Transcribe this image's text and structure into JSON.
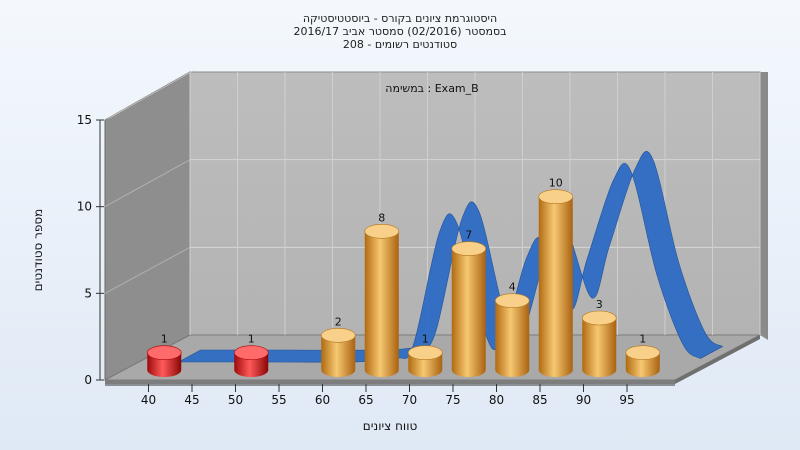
{
  "chart_data": {
    "type": "bar",
    "title_lines": [
      "היסטוגרמת ציונים בקורס - ביוסטטיסטיקה",
      "בסמסטר (02/2016) סמסטר אביב 2016/17",
      "סטודנטים רשומים - 208"
    ],
    "subtitle": "במשימה : Exam_B",
    "xlabel": "טווח ציונים",
    "ylabel": "מספר סטודנטים",
    "x_ticks": [
      "40",
      "45",
      "50",
      "55",
      "60",
      "65",
      "70",
      "75",
      "80",
      "85",
      "90",
      "95"
    ],
    "y_ticks": [
      "0",
      "5",
      "10",
      "15"
    ],
    "ylim": [
      0,
      15
    ],
    "grid": true,
    "bars": [
      {
        "x": 42.5,
        "value": 1,
        "label": "1",
        "color": "red"
      },
      {
        "x": 52.5,
        "value": 1,
        "label": "1",
        "color": "red"
      },
      {
        "x": 62.5,
        "value": 2,
        "label": "2",
        "color": "orange"
      },
      {
        "x": 67.5,
        "value": 8,
        "label": "8",
        "color": "orange"
      },
      {
        "x": 72.5,
        "value": 1,
        "label": "1",
        "color": "orange"
      },
      {
        "x": 77.5,
        "value": 7,
        "label": "7",
        "color": "orange"
      },
      {
        "x": 82.5,
        "value": 4,
        "label": "4",
        "color": "orange"
      },
      {
        "x": 87.5,
        "value": 10,
        "label": "10",
        "color": "orange"
      },
      {
        "x": 92.5,
        "value": 3,
        "label": "3",
        "color": "orange"
      },
      {
        "x": 97.5,
        "value": 1,
        "label": "1",
        "color": "orange"
      }
    ],
    "ribbon": {
      "x": [
        40,
        50,
        60,
        65,
        67,
        70,
        72,
        75,
        77,
        80,
        82,
        85,
        87,
        90,
        92,
        95,
        98,
        100
      ],
      "values": [
        0,
        0,
        0,
        0.2,
        1,
        7.5,
        8,
        2,
        1,
        6,
        7,
        3,
        6,
        10.5,
        11,
        5,
        1,
        0.2
      ]
    },
    "colors": {
      "red": "#e31818",
      "orange": "#e5a040",
      "ribbon": "#2e6cc4",
      "wall": "#b8b8b8",
      "floor": "#a9a9a9",
      "side": "#8c8c8c"
    }
  }
}
